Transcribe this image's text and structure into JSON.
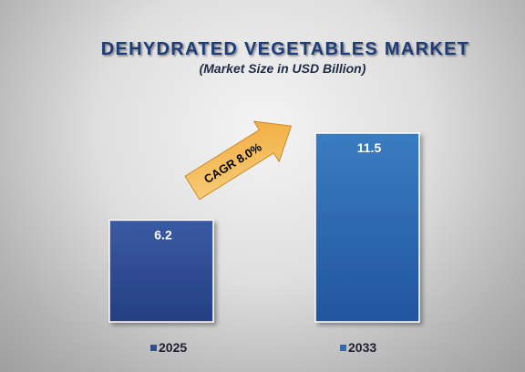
{
  "chart_data": {
    "type": "bar",
    "title": "DEHYDRATED VEGETABLES MARKET",
    "subtitle": "(Market Size in USD Billion)",
    "categories": [
      "2025",
      "2033"
    ],
    "values": [
      6.2,
      11.5
    ],
    "value_labels": [
      "6.2",
      "11.5"
    ],
    "annotation": "CAGR 8.0%",
    "legend_placement": "bottom",
    "grid": false,
    "colors": {
      "bar_2025": "#2f4f94",
      "bar_2033": "#2e6bb0",
      "title": "#1f3c78",
      "arrow": "#f3b550",
      "background": "#d8d8d8"
    }
  }
}
